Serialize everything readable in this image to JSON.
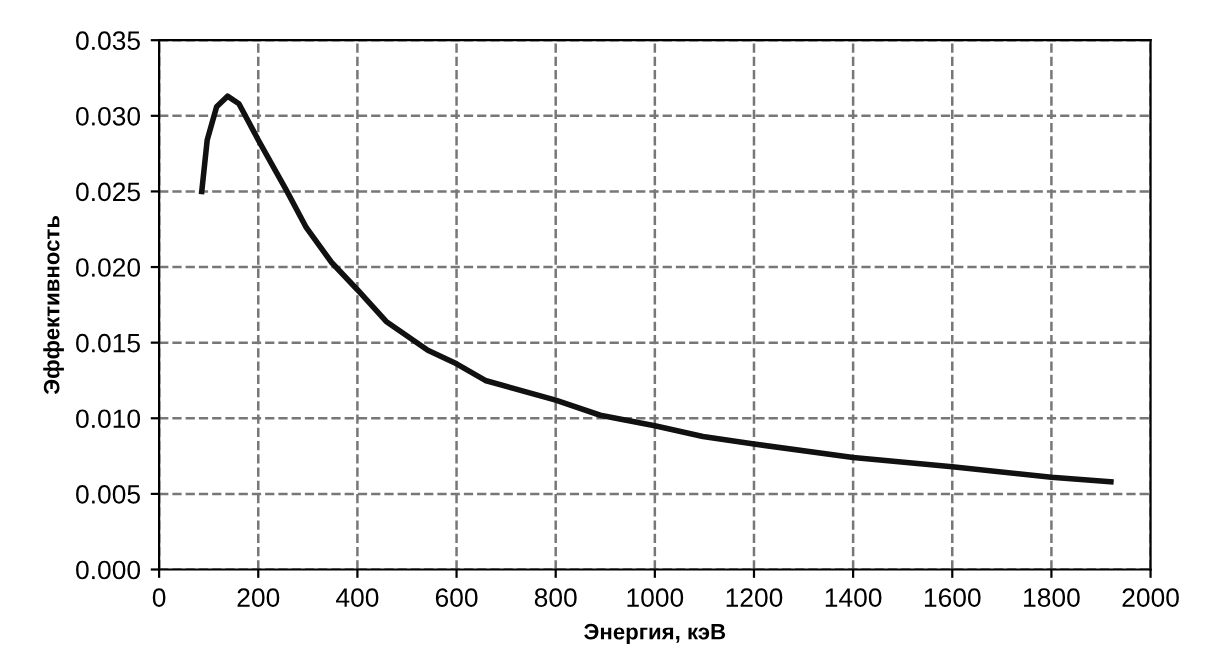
{
  "chart_data": {
    "type": "line",
    "xlabel": "Энергия, кэВ",
    "ylabel": "Эффективность",
    "series": [
      {
        "color": "#111111",
        "x": [
          86,
          97,
          116,
          138,
          161,
          200,
          258,
          297,
          348,
          400,
          458,
          542,
          600,
          658,
          800,
          890,
          1000,
          1097,
          1200,
          1400,
          1600,
          1800,
          1920
        ],
        "values": [
          0.025,
          0.0284,
          0.0306,
          0.0313,
          0.0308,
          0.0284,
          0.025,
          0.0226,
          0.0203,
          0.0185,
          0.0164,
          0.0145,
          0.0136,
          0.0125,
          0.0112,
          0.0102,
          0.0095,
          0.0088,
          0.0083,
          0.0074,
          0.0068,
          0.0061,
          0.0058
        ]
      }
    ],
    "xlim": [
      0,
      2000
    ],
    "xticks": [
      0,
      200,
      400,
      600,
      800,
      1000,
      1200,
      1400,
      1600,
      1800,
      2000
    ],
    "ylim": [
      0,
      0.035
    ],
    "yticks": [
      {
        "value": 0,
        "label": "0.000"
      },
      {
        "value": 0.005,
        "label": "0.005"
      },
      {
        "value": 0.01,
        "label": "0.010"
      },
      {
        "value": 0.015,
        "label": "0.015"
      },
      {
        "value": 0.02,
        "label": "0.020"
      },
      {
        "value": 0.025,
        "label": "0.025"
      },
      {
        "value": 0.03,
        "label": "0.030"
      },
      {
        "value": 0.035,
        "label": "0.035"
      }
    ],
    "grid": true,
    "line_style": "solid",
    "marker": "none",
    "legend": false
  }
}
